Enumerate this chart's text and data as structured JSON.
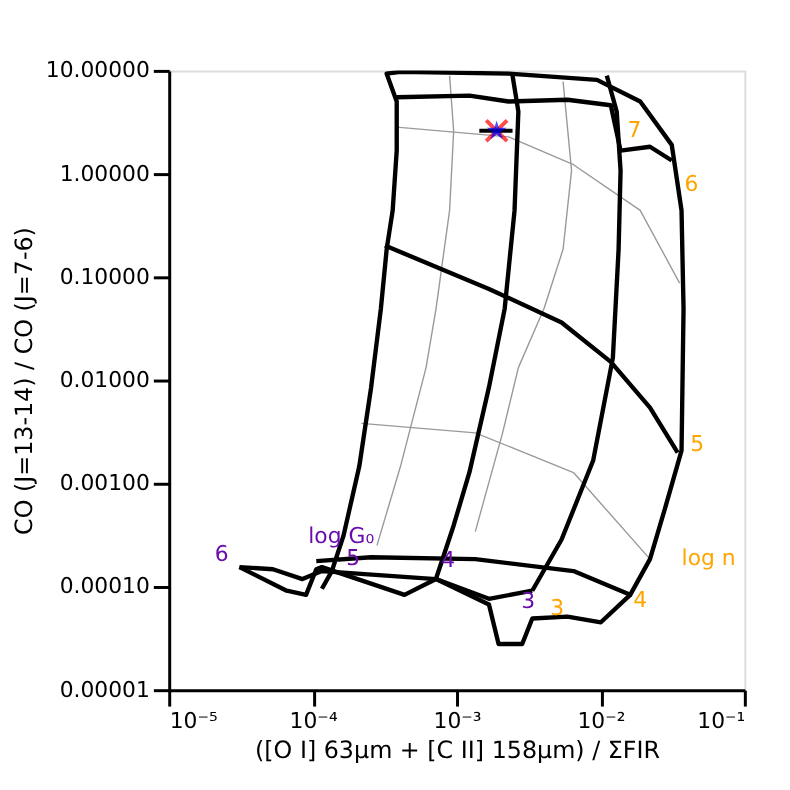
{
  "chart_data": {
    "type": "line",
    "xlabel": "([O I] 63μm + [C II] 158μm) / ΣFIR",
    "ylabel": "CO (J=13-14) / CO (J=7-6)",
    "log": "xy",
    "grid": false,
    "marker": "none",
    "line_style": "solid",
    "xlim": [
      1e-05,
      0.1
    ],
    "xticks": [
      {
        "value": 1e-05,
        "label": "10⁻⁵"
      },
      {
        "value": 0.0001,
        "label": "10⁻⁴"
      },
      {
        "value": 0.001,
        "label": "10⁻³"
      },
      {
        "value": 0.01,
        "label": "10⁻²"
      },
      {
        "value": 0.1,
        "label": "10⁻¹"
      }
    ],
    "ylim": [
      1e-05,
      10
    ],
    "yticks": [
      {
        "value": 1e-05,
        "label": "0.00001"
      },
      {
        "value": 0.0001,
        "label": "0.00010"
      },
      {
        "value": 0.001,
        "label": "0.00100"
      },
      {
        "value": 0.01,
        "label": "0.01000"
      },
      {
        "value": 0.1,
        "label": "0.10000"
      },
      {
        "value": 1,
        "label": "1.00000"
      },
      {
        "value": 10,
        "label": "10.00000"
      }
    ],
    "series": [
      {
        "color": "#999999",
        "x": [
          0.000384,
          0.0023,
          0.0065,
          0.0189,
          0.0355
        ],
        "values": [
          2.82,
          2.27,
          1.22,
          0.44,
          0.087
        ]
      },
      {
        "color": "#999999",
        "x": [
          0.000218,
          0.00135,
          0.0065,
          0.0221
        ],
        "values": [
          0.0038,
          0.00308,
          0.00127,
          0.000184
        ]
      },
      {
        "color": "#999999",
        "x": [
          0.000895,
          0.000955,
          0.000895,
          0.00072,
          0.000614,
          0.000408,
          0.00028
        ],
        "values": [
          8.9,
          2.59,
          0.44,
          0.049,
          0.0132,
          0.00146,
          0.00025
        ]
      },
      {
        "color": "#999999",
        "x": [
          0.0055,
          0.0063,
          0.0055,
          0.00405,
          0.00269,
          0.00209,
          0.00135
        ],
        "values": [
          7.8,
          1.07,
          0.185,
          0.049,
          0.0132,
          0.00308,
          0.00034
        ]
      },
      {
        "color": "#000000",
        "x": [
          0.000116,
          0.000136,
          0.000164,
          0.000211,
          0.000255,
          0.000298,
          0.000327,
          0.00036,
          0.000384,
          0.000384,
          0.000327,
          0.000408,
          0.0023,
          0.00946,
          0.0189,
          0.0313,
          0.0366,
          0.0378,
          0.0366,
          0.0284,
          0.0221,
          0.0161,
          0.0065,
          0.00135,
          0.000255,
          0.000106
        ],
        "values": [
          9.5e-05,
          0.000141,
          0.000312,
          0.00146,
          0.0085,
          0.049,
          0.185,
          0.44,
          1.67,
          5.0,
          9.3,
          9.7,
          9.3,
          8.1,
          5.0,
          1.9,
          0.44,
          0.049,
          0.00207,
          0.0006,
          0.000184,
          8.3e-05,
          0.000141,
          0.000184,
          0.000192,
          0.000176
        ]
      },
      {
        "color": "#000000",
        "x": [
          0.00245,
          0.00269,
          0.00253,
          0.00216,
          0.00168,
          0.00123,
          0.000955,
          0.00072
        ],
        "values": [
          8.9,
          4.0,
          0.44,
          0.049,
          0.0085,
          0.00128,
          0.00039,
          0.000119
        ]
      },
      {
        "color": "#000000",
        "x": [
          0.01107,
          0.01297,
          0.0138,
          0.01337,
          0.0122,
          0.0089,
          0.00537,
          0.00336
        ],
        "values": [
          8.9,
          4.0,
          1.07,
          0.184,
          0.0164,
          0.00166,
          0.000285,
          9.1e-05
        ]
      },
      {
        "color": "#000000",
        "x": [
          0.000384,
          0.00123,
          0.0023,
          0.0059,
          0.0118,
          0.0138,
          0.0221,
          0.0313
        ],
        "values": [
          5.5,
          5.7,
          5.0,
          5.2,
          4.6,
          1.67,
          1.82,
          1.34
        ]
      },
      {
        "color": "#000000",
        "x": [
          0.000318,
          0.00168,
          0.00537,
          0.0118,
          0.0221,
          0.0344
        ],
        "values": [
          0.201,
          0.0764,
          0.0361,
          0.015,
          0.0054,
          0.00198
        ]
      },
      {
        "color": "#000000",
        "x": [
          3.1e-05,
          5.3e-05,
          8.5e-05,
          0.000116,
          0.00072,
          0.00168,
          0.00336
        ],
        "values": [
          0.000154,
          0.000147,
          0.000118,
          0.000141,
          0.000118,
          7.6e-05,
          9.1e-05
        ]
      },
      {
        "color": "#000000",
        "x": [
          3.1e-05,
          6.6e-05,
          9e-05,
          0.000106,
          0.000116,
          0.000435,
          0.00072
        ],
        "values": [
          0.000154,
          9.1e-05,
          8.3e-05,
          0.000147,
          0.000154,
          8.3e-05,
          0.000118
        ]
      },
      {
        "color": "#000000",
        "x": [
          0.00072,
          0.00168,
          0.00196,
          0.00286,
          0.00336,
          0.0059,
          0.01007,
          0.0161
        ],
        "values": [
          0.000118,
          6.7e-05,
          2.77e-05,
          2.77e-05,
          4.9e-05,
          5.1e-05,
          4.5e-05,
          8.3e-05
        ]
      },
      {
        "type": "scatter",
        "marker": "cross",
        "color": "#ff0000",
        "x": [
          0.0019
        ],
        "values": [
          2.6
        ]
      },
      {
        "type": "scatter",
        "marker": "star",
        "color": "#0000ff",
        "x": [
          0.0019
        ],
        "values": [
          2.6
        ],
        "xerrors": [
          [
            0.00144,
            0.00245
          ]
        ]
      }
    ],
    "annotations": [
      {
        "text": "6",
        "x": 3.1e-05,
        "y": 0.000154
      },
      {
        "text": "log G₀",
        "x": 0.000158,
        "y": 0.00025
      },
      {
        "text": "5",
        "x": 0.000158,
        "y": 0.000154
      },
      {
        "text": "4",
        "x": 0.0007,
        "y": 0.000129
      },
      {
        "text": "3",
        "x": 0.00315,
        "y": 7e-05
      },
      {
        "text": "3",
        "x": 0.005,
        "y": 6.1e-05
      },
      {
        "text": "4",
        "x": 0.0161,
        "y": 7.6e-05
      },
      {
        "text": "5",
        "x": 0.0389,
        "y": 0.00225
      },
      {
        "text": "6",
        "x": 0.0366,
        "y": 0.44
      },
      {
        "text": "7",
        "x": 0.0172,
        "y": 1.99
      },
      "log n"
    ]
  }
}
